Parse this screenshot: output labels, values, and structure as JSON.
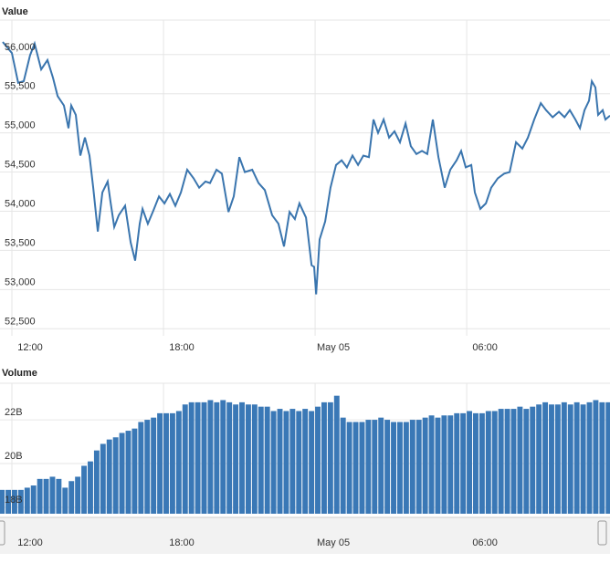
{
  "chart_data": [
    {
      "type": "line",
      "title": "Value",
      "color": "#3a75ae",
      "grid": true,
      "xlim": [
        -0.47,
        23.67
      ],
      "xticks": [
        {
          "value": 0,
          "label": "12:00"
        },
        {
          "value": 6,
          "label": "18:00"
        },
        {
          "value": 12,
          "label": "May 05"
        },
        {
          "value": 18,
          "label": "06:00"
        }
      ],
      "ylim": [
        52410,
        56440
      ],
      "yticks": [
        {
          "value": 52500,
          "label": "52,500"
        },
        {
          "value": 53000,
          "label": "53,000"
        },
        {
          "value": 53500,
          "label": "53,500"
        },
        {
          "value": 54000,
          "label": "54,000"
        },
        {
          "value": 54500,
          "label": "54,500"
        },
        {
          "value": 55000,
          "label": "55,000"
        },
        {
          "value": 55500,
          "label": "55,500"
        },
        {
          "value": 56000,
          "label": "56,000"
        }
      ],
      "x": [
        -0.36,
        0,
        0.25,
        0.47,
        0.72,
        0.9,
        1.16,
        1.41,
        1.63,
        1.81,
        2.06,
        2.24,
        2.35,
        2.53,
        2.71,
        2.89,
        3.07,
        3.22,
        3.4,
        3.58,
        3.79,
        3.9,
        4.05,
        4.23,
        4.48,
        4.7,
        4.88,
        5.06,
        5.17,
        5.38,
        5.6,
        5.82,
        6.04,
        6.25,
        6.47,
        6.69,
        6.94,
        7.19,
        7.41,
        7.66,
        7.84,
        8.1,
        8.31,
        8.57,
        8.78,
        9.0,
        9.22,
        9.51,
        9.76,
        10.01,
        10.3,
        10.55,
        10.77,
        10.99,
        11.2,
        11.38,
        11.64,
        11.86,
        11.96,
        12.04,
        12.18,
        12.4,
        12.61,
        12.83,
        13.05,
        13.26,
        13.48,
        13.7,
        13.91,
        14.13,
        14.31,
        14.49,
        14.71,
        14.93,
        15.14,
        15.36,
        15.58,
        15.79,
        16.01,
        16.23,
        16.44,
        16.66,
        16.88,
        17.13,
        17.35,
        17.6,
        17.78,
        17.96,
        18.18,
        18.32,
        18.54,
        18.76,
        18.97,
        19.23,
        19.48,
        19.7,
        19.95,
        20.2,
        20.42,
        20.67,
        20.93,
        21.14,
        21.4,
        21.65,
        21.87,
        22.08,
        22.3,
        22.48,
        22.66,
        22.84,
        22.95,
        23.09,
        23.2,
        23.38,
        23.49,
        23.67
      ],
      "values": [
        56160,
        56020,
        55640,
        55660,
        55990,
        56140,
        55810,
        55930,
        55700,
        55470,
        55350,
        55060,
        55350,
        55230,
        54710,
        54940,
        54710,
        54300,
        53740,
        54240,
        54380,
        54130,
        53800,
        53950,
        54070,
        53600,
        53370,
        53840,
        54030,
        53840,
        54010,
        54190,
        54100,
        54220,
        54070,
        54240,
        54530,
        54420,
        54300,
        54380,
        54360,
        54530,
        54480,
        53990,
        54190,
        54690,
        54500,
        54530,
        54360,
        54270,
        53950,
        53840,
        53550,
        53990,
        53900,
        54100,
        53920,
        53310,
        53290,
        52940,
        53640,
        53870,
        54300,
        54590,
        54650,
        54560,
        54710,
        54590,
        54710,
        54690,
        55170,
        55000,
        55170,
        54940,
        55020,
        54880,
        55120,
        54830,
        54730,
        54770,
        54730,
        55170,
        54690,
        54300,
        54530,
        54650,
        54770,
        54560,
        54590,
        54240,
        54030,
        54100,
        54300,
        54420,
        54480,
        54500,
        54880,
        54800,
        54940,
        55170,
        55380,
        55290,
        55200,
        55270,
        55200,
        55290,
        55170,
        55060,
        55290,
        55410,
        55660,
        55580,
        55230,
        55290,
        55170,
        55220
      ]
    },
    {
      "type": "bar",
      "title": "Volume",
      "color": "#3a78b6",
      "grid": true,
      "xlim": [
        -0.47,
        23.67
      ],
      "xticks": [
        {
          "value": 0,
          "label": "12:00"
        },
        {
          "value": 6,
          "label": "18:00"
        },
        {
          "value": 12,
          "label": "May 05"
        },
        {
          "value": 18,
          "label": "06:00"
        }
      ],
      "ylim": [
        17.71,
        23.67
      ],
      "yticks": [
        {
          "value": 18,
          "label": "18B"
        },
        {
          "value": 20,
          "label": "20B"
        },
        {
          "value": 22,
          "label": "22B"
        }
      ],
      "x": [
        -0.5,
        -0.25,
        0,
        0.25,
        0.5,
        0.75,
        1,
        1.25,
        1.5,
        1.75,
        2,
        2.25,
        2.5,
        2.75,
        3,
        3.25,
        3.5,
        3.75,
        4,
        4.25,
        4.5,
        4.75,
        5,
        5.25,
        5.5,
        5.75,
        6,
        6.25,
        6.5,
        6.75,
        7,
        7.25,
        7.5,
        7.75,
        8,
        8.25,
        8.5,
        8.75,
        9,
        9.25,
        9.5,
        9.75,
        10,
        10.25,
        10.5,
        10.75,
        11,
        11.25,
        11.5,
        11.75,
        12,
        12.25,
        12.5,
        12.75,
        13,
        13.25,
        13.5,
        13.75,
        14,
        14.25,
        14.5,
        14.75,
        15,
        15.25,
        15.5,
        15.75,
        16,
        16.25,
        16.5,
        16.75,
        17,
        17.25,
        17.5,
        17.75,
        18,
        18.25,
        18.5,
        18.75,
        19,
        19.25,
        19.5,
        19.75,
        20,
        20.25,
        20.5,
        20.75,
        21,
        21.25,
        21.5,
        21.75,
        22,
        22.25,
        22.5,
        22.75,
        23,
        23.25,
        23.5
      ],
      "values": [
        18.8,
        18.8,
        18.8,
        18.8,
        18.9,
        19.0,
        19.3,
        19.3,
        19.4,
        19.3,
        18.9,
        19.2,
        19.4,
        19.9,
        20.1,
        20.6,
        20.9,
        21.1,
        21.2,
        21.4,
        21.5,
        21.6,
        21.9,
        22.0,
        22.1,
        22.3,
        22.3,
        22.3,
        22.4,
        22.7,
        22.8,
        22.8,
        22.8,
        22.9,
        22.8,
        22.9,
        22.8,
        22.7,
        22.8,
        22.7,
        22.7,
        22.6,
        22.6,
        22.4,
        22.5,
        22.4,
        22.5,
        22.4,
        22.5,
        22.4,
        22.6,
        22.8,
        22.8,
        23.1,
        22.1,
        21.9,
        21.9,
        21.9,
        22.0,
        22.0,
        22.1,
        22.0,
        21.9,
        21.9,
        21.9,
        22.0,
        22.0,
        22.1,
        22.2,
        22.1,
        22.2,
        22.2,
        22.3,
        22.3,
        22.4,
        22.3,
        22.3,
        22.4,
        22.4,
        22.5,
        22.5,
        22.5,
        22.6,
        22.5,
        22.6,
        22.7,
        22.8,
        22.7,
        22.7,
        22.8,
        22.7,
        22.8,
        22.7,
        22.8,
        22.9,
        22.8,
        22.8
      ]
    }
  ]
}
